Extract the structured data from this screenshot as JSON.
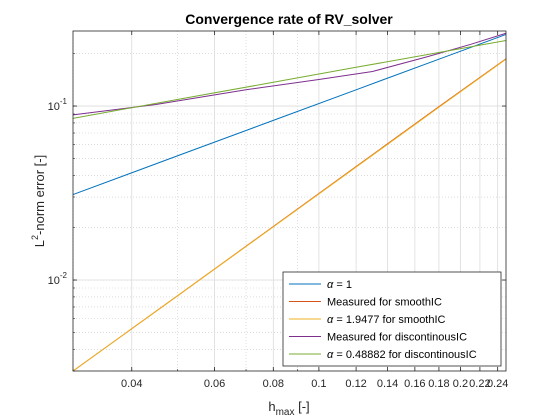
{
  "chart_data": {
    "type": "line",
    "title": "Convergence rate of RV_solver",
    "xlabel": {
      "main": "h",
      "sub": "max",
      "suffix": " [-]"
    },
    "ylabel": {
      "prefix": "L",
      "sup": "2",
      "suffix": "-norm error [-]"
    },
    "xscale": "log",
    "yscale": "log",
    "xlim": [
      0.03,
      0.25
    ],
    "ylim": [
      0.003,
      0.27
    ],
    "grid": true,
    "minor_grid": true,
    "legend_position": "bottom-right",
    "x_ticks": [
      {
        "value": 0.04,
        "label": "0.04"
      },
      {
        "value": 0.06,
        "label": "0.06"
      },
      {
        "value": 0.08,
        "label": "0.08"
      },
      {
        "value": 0.1,
        "label": "0.1"
      },
      {
        "value": 0.12,
        "label": "0.12"
      },
      {
        "value": 0.14,
        "label": "0.14"
      },
      {
        "value": 0.16,
        "label": "0.16"
      },
      {
        "value": 0.18,
        "label": "0.18"
      },
      {
        "value": 0.2,
        "label": "0.2"
      },
      {
        "value": 0.22,
        "label": "0.22"
      },
      {
        "value": 0.24,
        "label": "0.24"
      }
    ],
    "y_ticks": [
      {
        "value": 0.01,
        "base": "10",
        "exp": "-2"
      },
      {
        "value": 0.1,
        "base": "10",
        "exp": "-1"
      }
    ],
    "series": [
      {
        "name": "α = 1",
        "color": "#0072BD",
        "x": [
          0.03,
          0.05,
          0.08,
          0.12,
          0.18,
          0.25
        ],
        "y": [
          0.031,
          0.0517,
          0.0827,
          0.124,
          0.186,
          0.258
        ]
      },
      {
        "name": "Measured for smoothIC",
        "color": "#D95319",
        "x": [
          0.03,
          0.05,
          0.08,
          0.12,
          0.18,
          0.25
        ],
        "y": [
          0.003,
          0.0081,
          0.0203,
          0.0449,
          0.0992,
          0.187
        ]
      },
      {
        "name": "α = 1.9477 for smoothIC",
        "color": "#EDB120",
        "x": [
          0.03,
          0.05,
          0.08,
          0.12,
          0.18,
          0.25
        ],
        "y": [
          0.003,
          0.0081,
          0.0202,
          0.0446,
          0.0984,
          0.186
        ]
      },
      {
        "name": "Measured for discontinousIC",
        "color": "#7E2F8E",
        "x": [
          0.03,
          0.045,
          0.07,
          0.1,
          0.13,
          0.17,
          0.21,
          0.25
        ],
        "y": [
          0.089,
          0.102,
          0.124,
          0.142,
          0.158,
          0.192,
          0.226,
          0.262
        ]
      },
      {
        "name": "α = 0.48882 for discontinousIC",
        "color": "#77AC30",
        "x": [
          0.03,
          0.05,
          0.08,
          0.12,
          0.18,
          0.25
        ],
        "y": [
          0.085,
          0.109,
          0.137,
          0.167,
          0.203,
          0.238
        ]
      }
    ]
  }
}
